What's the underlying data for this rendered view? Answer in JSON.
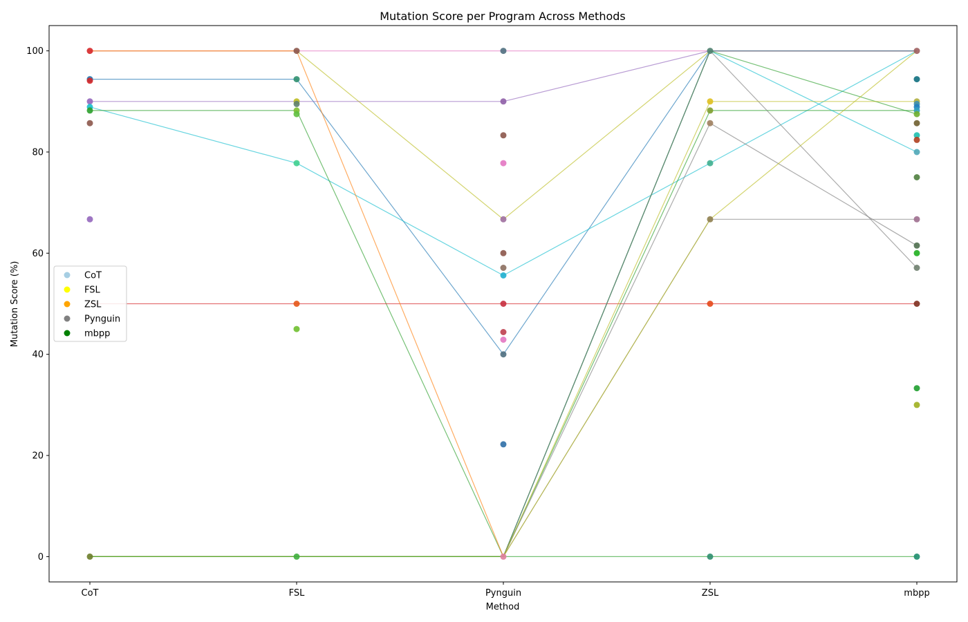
{
  "chart_data": {
    "type": "line",
    "title": "Mutation Score per Program Across Methods",
    "xlabel": "Method",
    "ylabel": "Mutation Score (%)",
    "categories": [
      "CoT",
      "FSL",
      "Pynguin",
      "ZSL",
      "mbpp"
    ],
    "ylim": [
      -5,
      105
    ],
    "yticks": [
      0,
      20,
      40,
      60,
      80,
      100
    ],
    "grid": false,
    "legend_placement": "center-left",
    "legend": [
      {
        "label": "CoT",
        "color": "#a6cee3"
      },
      {
        "label": "FSL",
        "color": "#ffff00"
      },
      {
        "label": "ZSL",
        "color": "#ffa500"
      },
      {
        "label": "Pynguin",
        "color": "#808080"
      },
      {
        "label": "mbpp",
        "color": "#008000"
      }
    ],
    "lines": [
      {
        "color": "#bcbd22",
        "values": [
          100,
          100,
          66.7,
          100,
          100
        ]
      },
      {
        "color": "#1f77b4",
        "values": [
          94.4,
          94.4,
          40,
          100,
          100
        ]
      },
      {
        "color": "#e377c2",
        "values": [
          100,
          100,
          100,
          100,
          100
        ]
      },
      {
        "color": "#9467bd",
        "values": [
          90,
          90,
          90,
          100,
          100
        ]
      },
      {
        "color": "#17becf",
        "values": [
          88.9,
          77.8,
          55.6,
          77.8,
          100
        ]
      },
      {
        "color": "#2ca02c",
        "values": [
          88.2,
          88.2,
          0,
          88.2,
          88.2
        ]
      },
      {
        "color": "#d62728",
        "values": [
          50,
          50,
          50,
          50,
          50
        ]
      },
      {
        "color": "#ff7f0e",
        "values": [
          100,
          100,
          0,
          100,
          100
        ]
      },
      {
        "color": "#1f77b4",
        "values": [
          0,
          0,
          0,
          100,
          100
        ]
      },
      {
        "color": "#17becf",
        "values": [
          0,
          0,
          0,
          100,
          80
        ]
      },
      {
        "color": "#2ca02c",
        "values": [
          0,
          0,
          0,
          100,
          87.5
        ]
      },
      {
        "color": "#7f7f7f",
        "values": [
          0,
          0,
          0,
          100,
          57.1
        ]
      },
      {
        "color": "#7f7f7f",
        "values": [
          0,
          0,
          0,
          85.7,
          61.5
        ]
      },
      {
        "color": "#7f7f7f",
        "values": [
          0,
          0,
          0,
          66.7,
          66.7
        ]
      },
      {
        "color": "#bcbd22",
        "values": [
          0,
          0,
          0,
          66.7,
          100
        ]
      },
      {
        "color": "#bcbd22",
        "values": [
          0,
          0,
          0,
          90,
          90
        ]
      },
      {
        "color": "#2ca02c",
        "values": [
          0,
          0,
          0,
          0,
          0
        ]
      }
    ],
    "points": {
      "CoT": [
        {
          "y": 100,
          "color": "#d62728"
        },
        {
          "y": 94.4,
          "color": "#1f77b4"
        },
        {
          "y": 94.1,
          "color": "#d62728"
        },
        {
          "y": 90,
          "color": "#9467bd"
        },
        {
          "y": 88.9,
          "color": "#17becf"
        },
        {
          "y": 88.2,
          "color": "#2ca02c"
        },
        {
          "y": 85.7,
          "color": "#8c564b"
        },
        {
          "y": 66.7,
          "color": "#9467bd"
        },
        {
          "y": 0,
          "color": "#6b7d2a"
        }
      ],
      "FSL": [
        {
          "y": 100,
          "color": "#8c564b"
        },
        {
          "y": 94.4,
          "color": "#2f8f6f"
        },
        {
          "y": 90,
          "color": "#bcbd22"
        },
        {
          "y": 89.5,
          "color": "#5f7f6f"
        },
        {
          "y": 88.2,
          "color": "#7fbf2f"
        },
        {
          "y": 87.5,
          "color": "#5fbf3f"
        },
        {
          "y": 77.8,
          "color": "#3fcf8f"
        },
        {
          "y": 50,
          "color": "#e5581a"
        },
        {
          "y": 45,
          "color": "#6fbf2f"
        },
        {
          "y": 0,
          "color": "#3faf3f"
        }
      ],
      "Pynguin": [
        {
          "y": 100,
          "color": "#4f6f7f"
        },
        {
          "y": 90,
          "color": "#8f5fa7"
        },
        {
          "y": 83.3,
          "color": "#8c564b"
        },
        {
          "y": 77.8,
          "color": "#e377c2"
        },
        {
          "y": 66.7,
          "color": "#9f6f9f"
        },
        {
          "y": 60,
          "color": "#8c564b"
        },
        {
          "y": 57.1,
          "color": "#8c6f5f"
        },
        {
          "y": 55.6,
          "color": "#1fafcf"
        },
        {
          "y": 50,
          "color": "#c62f3f"
        },
        {
          "y": 44.4,
          "color": "#bf3f4f"
        },
        {
          "y": 42.9,
          "color": "#e377c2"
        },
        {
          "y": 40,
          "color": "#4f6f7f"
        },
        {
          "y": 22.2,
          "color": "#2f6fa7"
        },
        {
          "y": 0,
          "color": "#df7f9f"
        }
      ],
      "ZSL": [
        {
          "y": 100,
          "color": "#4f7f6f"
        },
        {
          "y": 90,
          "color": "#dfbf1f"
        },
        {
          "y": 88.2,
          "color": "#7f9f2f"
        },
        {
          "y": 85.7,
          "color": "#9f7f5f"
        },
        {
          "y": 77.8,
          "color": "#3faf8f"
        },
        {
          "y": 66.7,
          "color": "#8f7f4f"
        },
        {
          "y": 50,
          "color": "#e5481a"
        },
        {
          "y": 0,
          "color": "#2f8f6f"
        }
      ],
      "mbpp": [
        {
          "y": 100,
          "color": "#9f5f5f"
        },
        {
          "y": 94.4,
          "color": "#0f6f7f"
        },
        {
          "y": 90,
          "color": "#afaf3f"
        },
        {
          "y": 89.5,
          "color": "#3f8faf"
        },
        {
          "y": 88.9,
          "color": "#1f7fbf"
        },
        {
          "y": 88.2,
          "color": "#2fa0bf"
        },
        {
          "y": 87.5,
          "color": "#6faf2f"
        },
        {
          "y": 85.7,
          "color": "#6f5f2f"
        },
        {
          "y": 83.3,
          "color": "#1fbfaf"
        },
        {
          "y": 82.4,
          "color": "#af3f1f"
        },
        {
          "y": 80,
          "color": "#4fa7b7"
        },
        {
          "y": 75,
          "color": "#4f7f3f"
        },
        {
          "y": 66.7,
          "color": "#9f6f8f"
        },
        {
          "y": 61.5,
          "color": "#4f6f4f"
        },
        {
          "y": 60,
          "color": "#1faf1f"
        },
        {
          "y": 57.1,
          "color": "#6f7f6f"
        },
        {
          "y": 50,
          "color": "#7f2f1f"
        },
        {
          "y": 33.3,
          "color": "#1f9f2f"
        },
        {
          "y": 30,
          "color": "#9faf1f"
        },
        {
          "y": 0,
          "color": "#1f8f6f"
        }
      ]
    }
  }
}
